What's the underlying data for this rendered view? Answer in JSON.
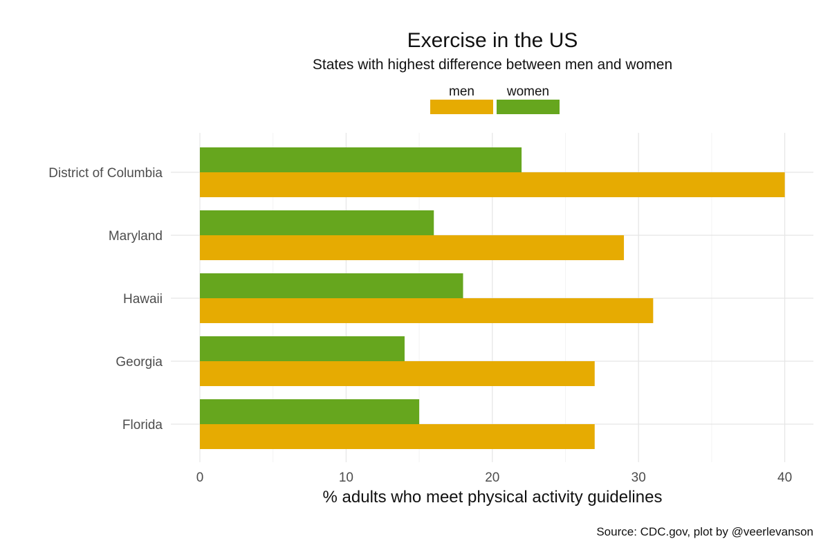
{
  "chart_data": {
    "type": "bar",
    "orientation": "horizontal",
    "title": "Exercise in the US",
    "subtitle": "States with highest difference between men and women",
    "xlabel": "% adults who meet physical activity guidelines",
    "ylabel": "",
    "categories": [
      "District of Columbia",
      "Maryland",
      "Hawaii",
      "Georgia",
      "Florida"
    ],
    "series": [
      {
        "name": "men",
        "color": "#E6AB02",
        "values": [
          40,
          29,
          31,
          27,
          27
        ]
      },
      {
        "name": "women",
        "color": "#66A61E",
        "values": [
          22,
          16,
          18,
          14,
          15
        ]
      }
    ],
    "xlim": [
      0,
      42
    ],
    "x_ticks": [
      0,
      10,
      20,
      30,
      40
    ],
    "x_minor_ticks": [
      5,
      15,
      25,
      35
    ],
    "legend_position": "top-center",
    "grid": true,
    "caption": "Source: CDC.gov, plot by @veerlevanson"
  }
}
